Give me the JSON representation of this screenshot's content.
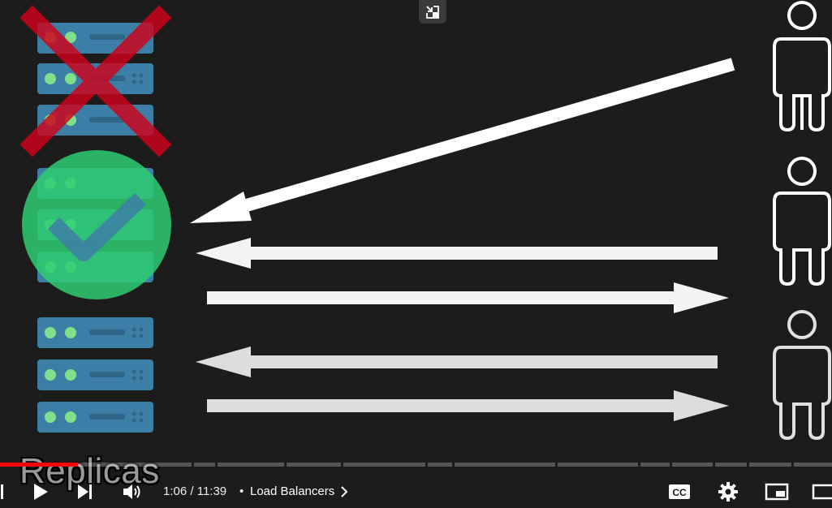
{
  "caption": "Replicas",
  "player": {
    "current_time": "1:06",
    "duration": "11:39",
    "time_separator": "/",
    "chapter_separator": "•",
    "chapter_title": "Load Balancers",
    "progress_fraction": 0.094
  },
  "icons": {
    "minimize": "exit-miniplayer-icon",
    "play": "play-icon",
    "next": "next-icon",
    "volume": "volume-icon",
    "chapter_chevron": "chevron-right-icon",
    "captions": "closed-captions-icon",
    "settings": "gear-icon",
    "miniplayer": "miniplayer-icon",
    "theater": "theater-mode-icon"
  },
  "colors": {
    "background": "#1c1c1c",
    "server_blue": "#3d7ea6",
    "server_led": "#7ee08a",
    "cross_red": "#d0021b",
    "check_green": "#2ecc71",
    "progress_red": "#ff0000",
    "arrow": "#ffffff"
  }
}
